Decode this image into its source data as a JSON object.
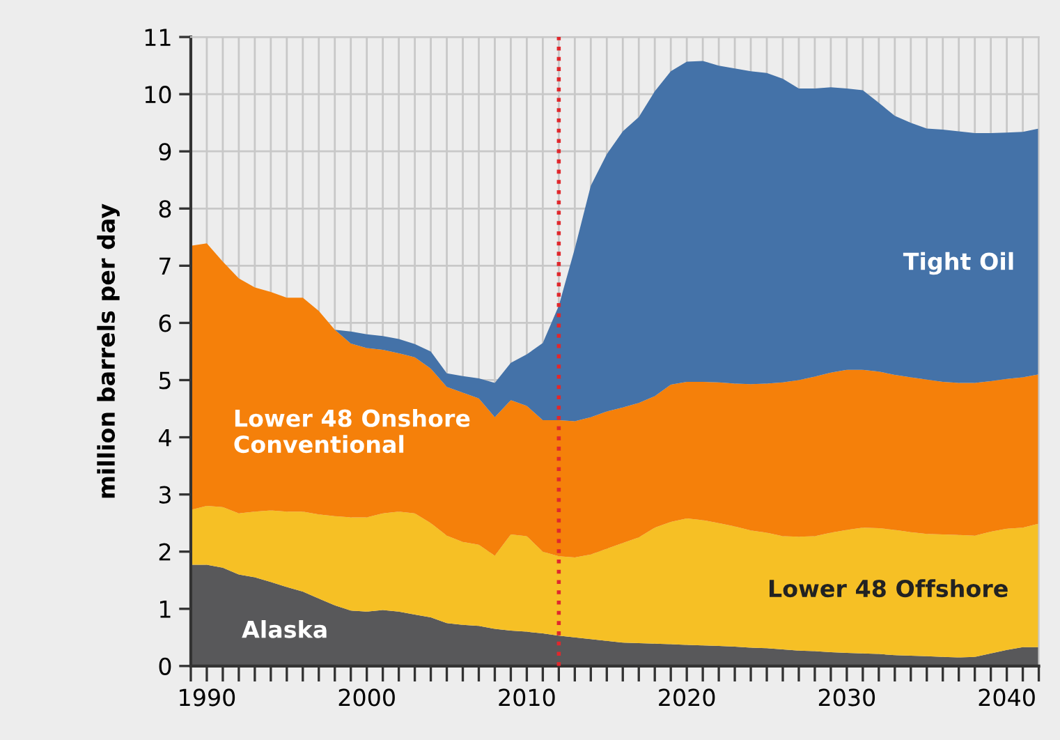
{
  "chart_data": {
    "type": "area",
    "stacked": true,
    "ylabel": "million barrels per day",
    "x": [
      1989,
      1990,
      1991,
      1992,
      1993,
      1994,
      1995,
      1996,
      1997,
      1998,
      1999,
      2000,
      2001,
      2002,
      2003,
      2004,
      2005,
      2006,
      2007,
      2008,
      2009,
      2010,
      2011,
      2012,
      2013,
      2014,
      2015,
      2016,
      2017,
      2018,
      2019,
      2020,
      2021,
      2022,
      2023,
      2024,
      2025,
      2026,
      2027,
      2028,
      2029,
      2030,
      2031,
      2032,
      2033,
      2034,
      2035,
      2036,
      2037,
      2038,
      2039,
      2040,
      2041,
      2042
    ],
    "series": [
      {
        "name": "Alaska",
        "color": "#58585a",
        "values": [
          1.77,
          1.77,
          1.72,
          1.6,
          1.55,
          1.47,
          1.38,
          1.3,
          1.18,
          1.06,
          0.97,
          0.95,
          0.98,
          0.95,
          0.9,
          0.85,
          0.75,
          0.72,
          0.7,
          0.65,
          0.62,
          0.6,
          0.57,
          0.53,
          0.5,
          0.47,
          0.44,
          0.41,
          0.4,
          0.39,
          0.38,
          0.37,
          0.36,
          0.35,
          0.34,
          0.32,
          0.31,
          0.29,
          0.27,
          0.26,
          0.24,
          0.23,
          0.22,
          0.21,
          0.19,
          0.18,
          0.17,
          0.16,
          0.15,
          0.16,
          0.22,
          0.28,
          0.33,
          0.33
        ]
      },
      {
        "name": "Lower 48 Offshore",
        "color": "#f6c025",
        "values": [
          0.96,
          1.03,
          1.06,
          1.07,
          1.15,
          1.25,
          1.32,
          1.4,
          1.47,
          1.56,
          1.63,
          1.65,
          1.69,
          1.75,
          1.77,
          1.65,
          1.53,
          1.45,
          1.42,
          1.28,
          1.68,
          1.67,
          1.43,
          1.39,
          1.4,
          1.48,
          1.61,
          1.74,
          1.85,
          2.03,
          2.14,
          2.21,
          2.19,
          2.15,
          2.1,
          2.05,
          2.02,
          1.98,
          1.99,
          2.01,
          2.09,
          2.15,
          2.2,
          2.2,
          2.19,
          2.16,
          2.14,
          2.14,
          2.14,
          2.12,
          2.13,
          2.12,
          2.09,
          2.16
        ]
      },
      {
        "name": "Lower 48 Onshore\nConventional",
        "color": "#f5800a",
        "values": [
          4.62,
          4.59,
          4.29,
          4.11,
          3.92,
          3.82,
          3.74,
          3.74,
          3.56,
          3.26,
          3.04,
          2.96,
          2.86,
          2.77,
          2.73,
          2.7,
          2.6,
          2.61,
          2.56,
          2.42,
          2.35,
          2.28,
          2.3,
          2.38,
          2.38,
          2.4,
          2.4,
          2.37,
          2.35,
          2.3,
          2.4,
          2.39,
          2.42,
          2.46,
          2.5,
          2.56,
          2.61,
          2.69,
          2.74,
          2.79,
          2.8,
          2.8,
          2.76,
          2.74,
          2.71,
          2.71,
          2.7,
          2.67,
          2.66,
          2.67,
          2.63,
          2.62,
          2.63,
          2.61
        ]
      },
      {
        "name": "Tight Oil",
        "color": "#4472a8",
        "values": [
          0,
          0,
          0,
          0,
          0,
          0,
          0,
          0,
          0,
          0,
          0.21,
          0.24,
          0.24,
          0.25,
          0.23,
          0.3,
          0.24,
          0.29,
          0.35,
          0.6,
          0.65,
          0.9,
          1.35,
          2.0,
          3.02,
          4.05,
          4.5,
          4.83,
          5.0,
          5.33,
          5.48,
          5.6,
          5.61,
          5.54,
          5.51,
          5.47,
          5.43,
          5.31,
          5.1,
          5.04,
          4.99,
          4.92,
          4.89,
          4.7,
          4.53,
          4.45,
          4.39,
          4.41,
          4.4,
          4.37,
          4.34,
          4.31,
          4.29,
          4.3
        ]
      }
    ],
    "xlim": [
      1989,
      2042
    ],
    "ylim": [
      0,
      11
    ],
    "xticks": [
      {
        "value": 1989,
        "label": null
      },
      1990,
      {
        "value": 1991,
        "label": null
      },
      {
        "value": 1992,
        "label": null
      },
      {
        "value": 1993,
        "label": null
      },
      {
        "value": 1994,
        "label": null
      },
      {
        "value": 1995,
        "label": null
      },
      {
        "value": 1996,
        "label": null
      },
      {
        "value": 1997,
        "label": null
      },
      {
        "value": 1998,
        "label": null
      },
      {
        "value": 1999,
        "label": null
      },
      2000,
      {
        "value": 2001,
        "label": null
      },
      {
        "value": 2002,
        "label": null
      },
      {
        "value": 2003,
        "label": null
      },
      {
        "value": 2004,
        "label": null
      },
      {
        "value": 2005,
        "label": null
      },
      {
        "value": 2006,
        "label": null
      },
      {
        "value": 2007,
        "label": null
      },
      {
        "value": 2008,
        "label": null
      },
      {
        "value": 2009,
        "label": null
      },
      2010,
      {
        "value": 2011,
        "label": null
      },
      {
        "value": 2012,
        "label": null
      },
      {
        "value": 2013,
        "label": null
      },
      {
        "value": 2014,
        "label": null
      },
      {
        "value": 2015,
        "label": null
      },
      {
        "value": 2016,
        "label": null
      },
      {
        "value": 2017,
        "label": null
      },
      {
        "value": 2018,
        "label": null
      },
      {
        "value": 2019,
        "label": null
      },
      2020,
      {
        "value": 2021,
        "label": null
      },
      {
        "value": 2022,
        "label": null
      },
      {
        "value": 2023,
        "label": null
      },
      {
        "value": 2024,
        "label": null
      },
      {
        "value": 2025,
        "label": null
      },
      {
        "value": 2026,
        "label": null
      },
      {
        "value": 2027,
        "label": null
      },
      {
        "value": 2028,
        "label": null
      },
      {
        "value": 2029,
        "label": null
      },
      2030,
      {
        "value": 2031,
        "label": null
      },
      {
        "value": 2032,
        "label": null
      },
      {
        "value": 2033,
        "label": null
      },
      {
        "value": 2034,
        "label": null
      },
      {
        "value": 2035,
        "label": null
      },
      {
        "value": 2036,
        "label": null
      },
      {
        "value": 2037,
        "label": null
      },
      {
        "value": 2038,
        "label": null
      },
      {
        "value": 2039,
        "label": null
      },
      2040,
      {
        "value": 2041,
        "label": null
      },
      {
        "value": 2042,
        "label": null
      }
    ],
    "yticks": [
      0,
      1,
      2,
      3,
      4,
      5,
      6,
      7,
      8,
      9,
      10,
      11
    ],
    "ref_lines": [
      {
        "axis": "x",
        "value": 2012,
        "color": "#e0282d",
        "line_style": "dotted"
      }
    ],
    "grid": true
  }
}
